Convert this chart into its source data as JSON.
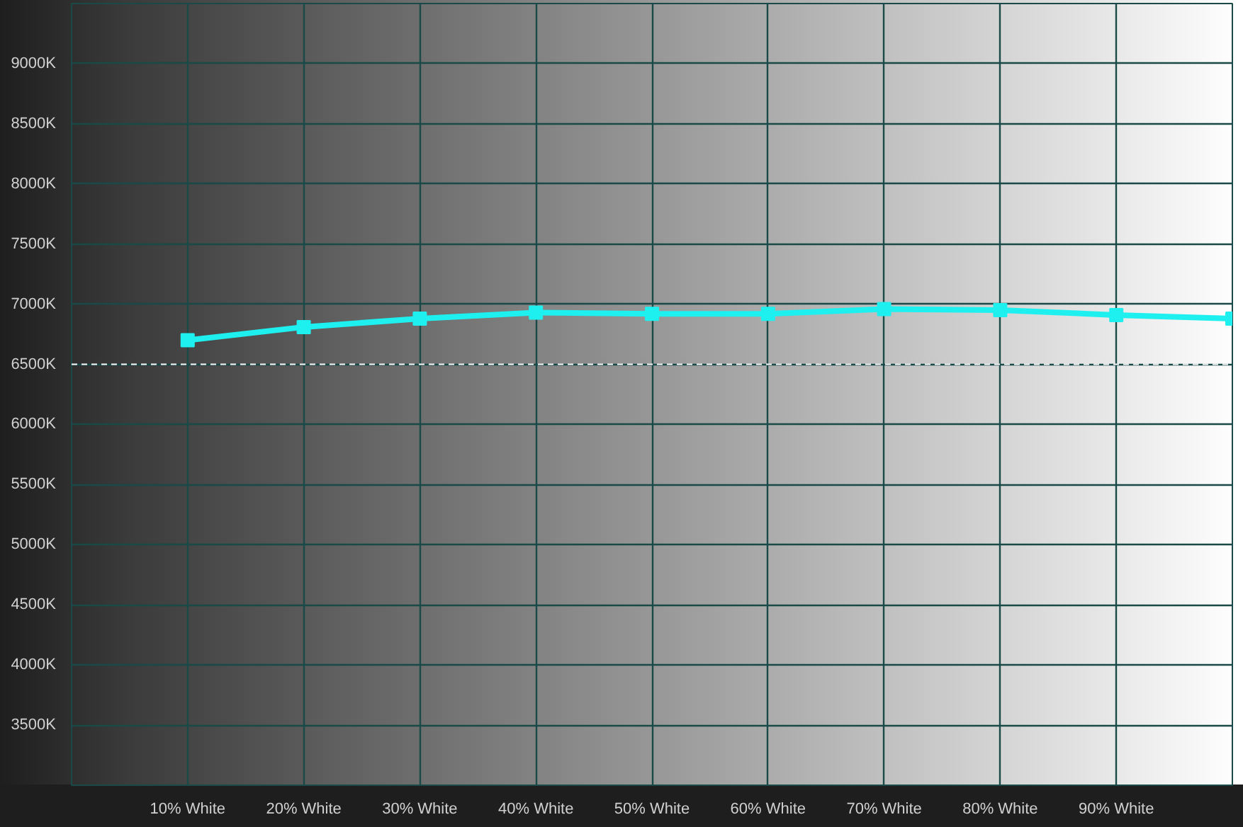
{
  "chart_data": {
    "type": "line",
    "x": [
      10,
      20,
      30,
      40,
      50,
      60,
      70,
      80,
      90,
      100
    ],
    "series": [
      {
        "color": "#1ef0f0",
        "values": [
          6700,
          6810,
          6880,
          6930,
          6920,
          6920,
          6960,
          6950,
          6910,
          6880
        ]
      }
    ],
    "xlim": [
      0,
      100
    ],
    "xticks": [
      {
        "value": 10,
        "label": "10% White"
      },
      {
        "value": 20,
        "label": "20% White"
      },
      {
        "value": 30,
        "label": "30% White"
      },
      {
        "value": 40,
        "label": "40% White"
      },
      {
        "value": 50,
        "label": "50% White"
      },
      {
        "value": 60,
        "label": "60% White"
      },
      {
        "value": 70,
        "label": "70% White"
      },
      {
        "value": 80,
        "label": "80% White"
      },
      {
        "value": 90,
        "label": "90% White"
      }
    ],
    "ylim": [
      3000,
      9500
    ],
    "yticks": [
      {
        "value": 3500,
        "label": "3500K"
      },
      {
        "value": 4000,
        "label": "4000K"
      },
      {
        "value": 4500,
        "label": "4500K"
      },
      {
        "value": 5000,
        "label": "5000K"
      },
      {
        "value": 5500,
        "label": "5500K"
      },
      {
        "value": 6000,
        "label": "6000K"
      },
      {
        "value": 6500,
        "label": "6500K"
      },
      {
        "value": 7000,
        "label": "7000K"
      },
      {
        "value": 7500,
        "label": "7500K"
      },
      {
        "value": 8000,
        "label": "8000K"
      },
      {
        "value": 8500,
        "label": "8500K"
      },
      {
        "value": 9000,
        "label": "9000K"
      }
    ],
    "ref_lines": [
      {
        "axis": "y",
        "value": 6500,
        "color": "#ffffff",
        "line_style": "dashed"
      }
    ],
    "grid": true,
    "marker": "square",
    "line_style": "solid"
  }
}
